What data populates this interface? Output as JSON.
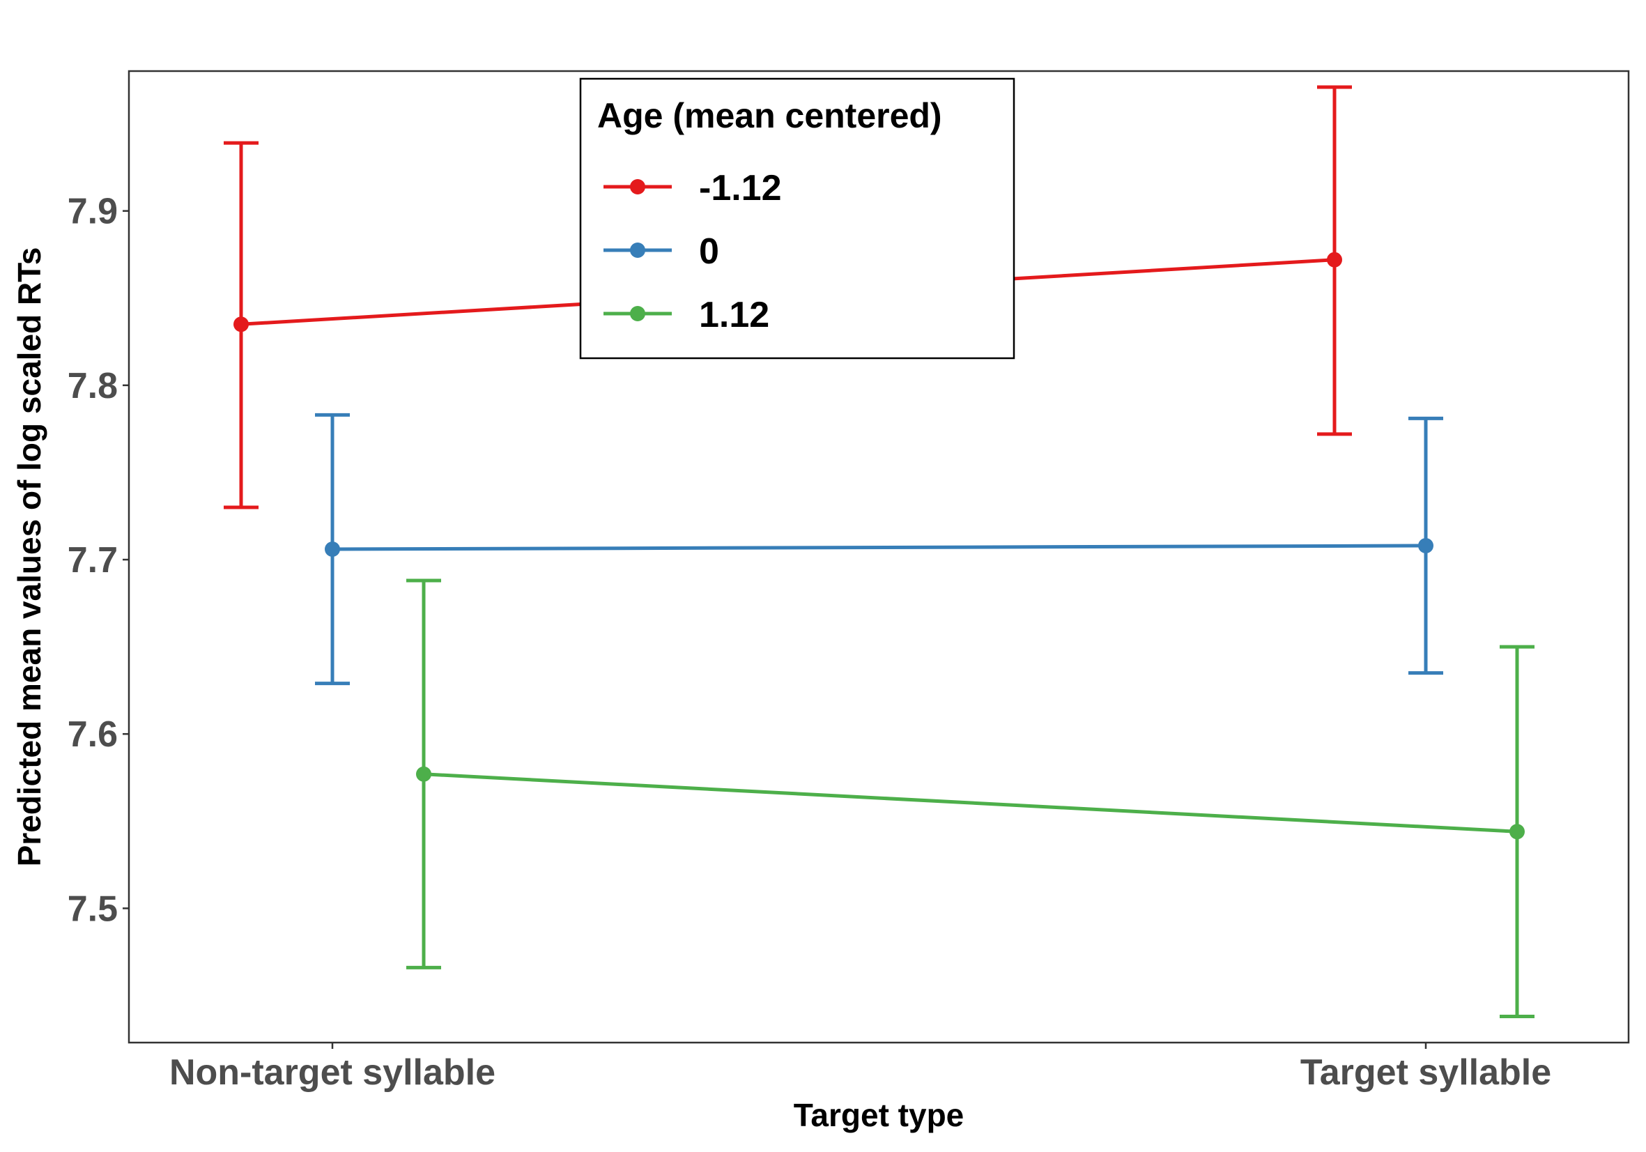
{
  "chart_data": {
    "type": "line",
    "xlabel": "Target type",
    "ylabel": "Predicted mean values of log scaled RTs",
    "categories": [
      "Non-target syllable",
      "Target syllable"
    ],
    "ylim": [
      7.42,
      8.0
    ],
    "yticks": [
      7.5,
      7.6,
      7.7,
      7.8,
      7.9
    ],
    "ytick_labels": [
      "7.5",
      "7.6",
      "7.7",
      "7.8",
      "7.9"
    ],
    "grid": false,
    "legend": {
      "title": "Age (mean centered)",
      "position": "top-center"
    },
    "series": [
      {
        "name": "-1.12",
        "color": "#e41a1c",
        "values": [
          7.835,
          7.872
        ],
        "lower": [
          7.73,
          7.772
        ],
        "upper": [
          7.939,
          7.971
        ]
      },
      {
        "name": "0",
        "color": "#377eb8",
        "values": [
          7.706,
          7.708
        ],
        "lower": [
          7.629,
          7.635
        ],
        "upper": [
          7.783,
          7.781
        ]
      },
      {
        "name": "1.12",
        "color": "#4daf4a",
        "values": [
          7.577,
          7.544
        ],
        "lower": [
          7.466,
          7.438
        ],
        "upper": [
          7.688,
          7.65
        ]
      }
    ]
  }
}
